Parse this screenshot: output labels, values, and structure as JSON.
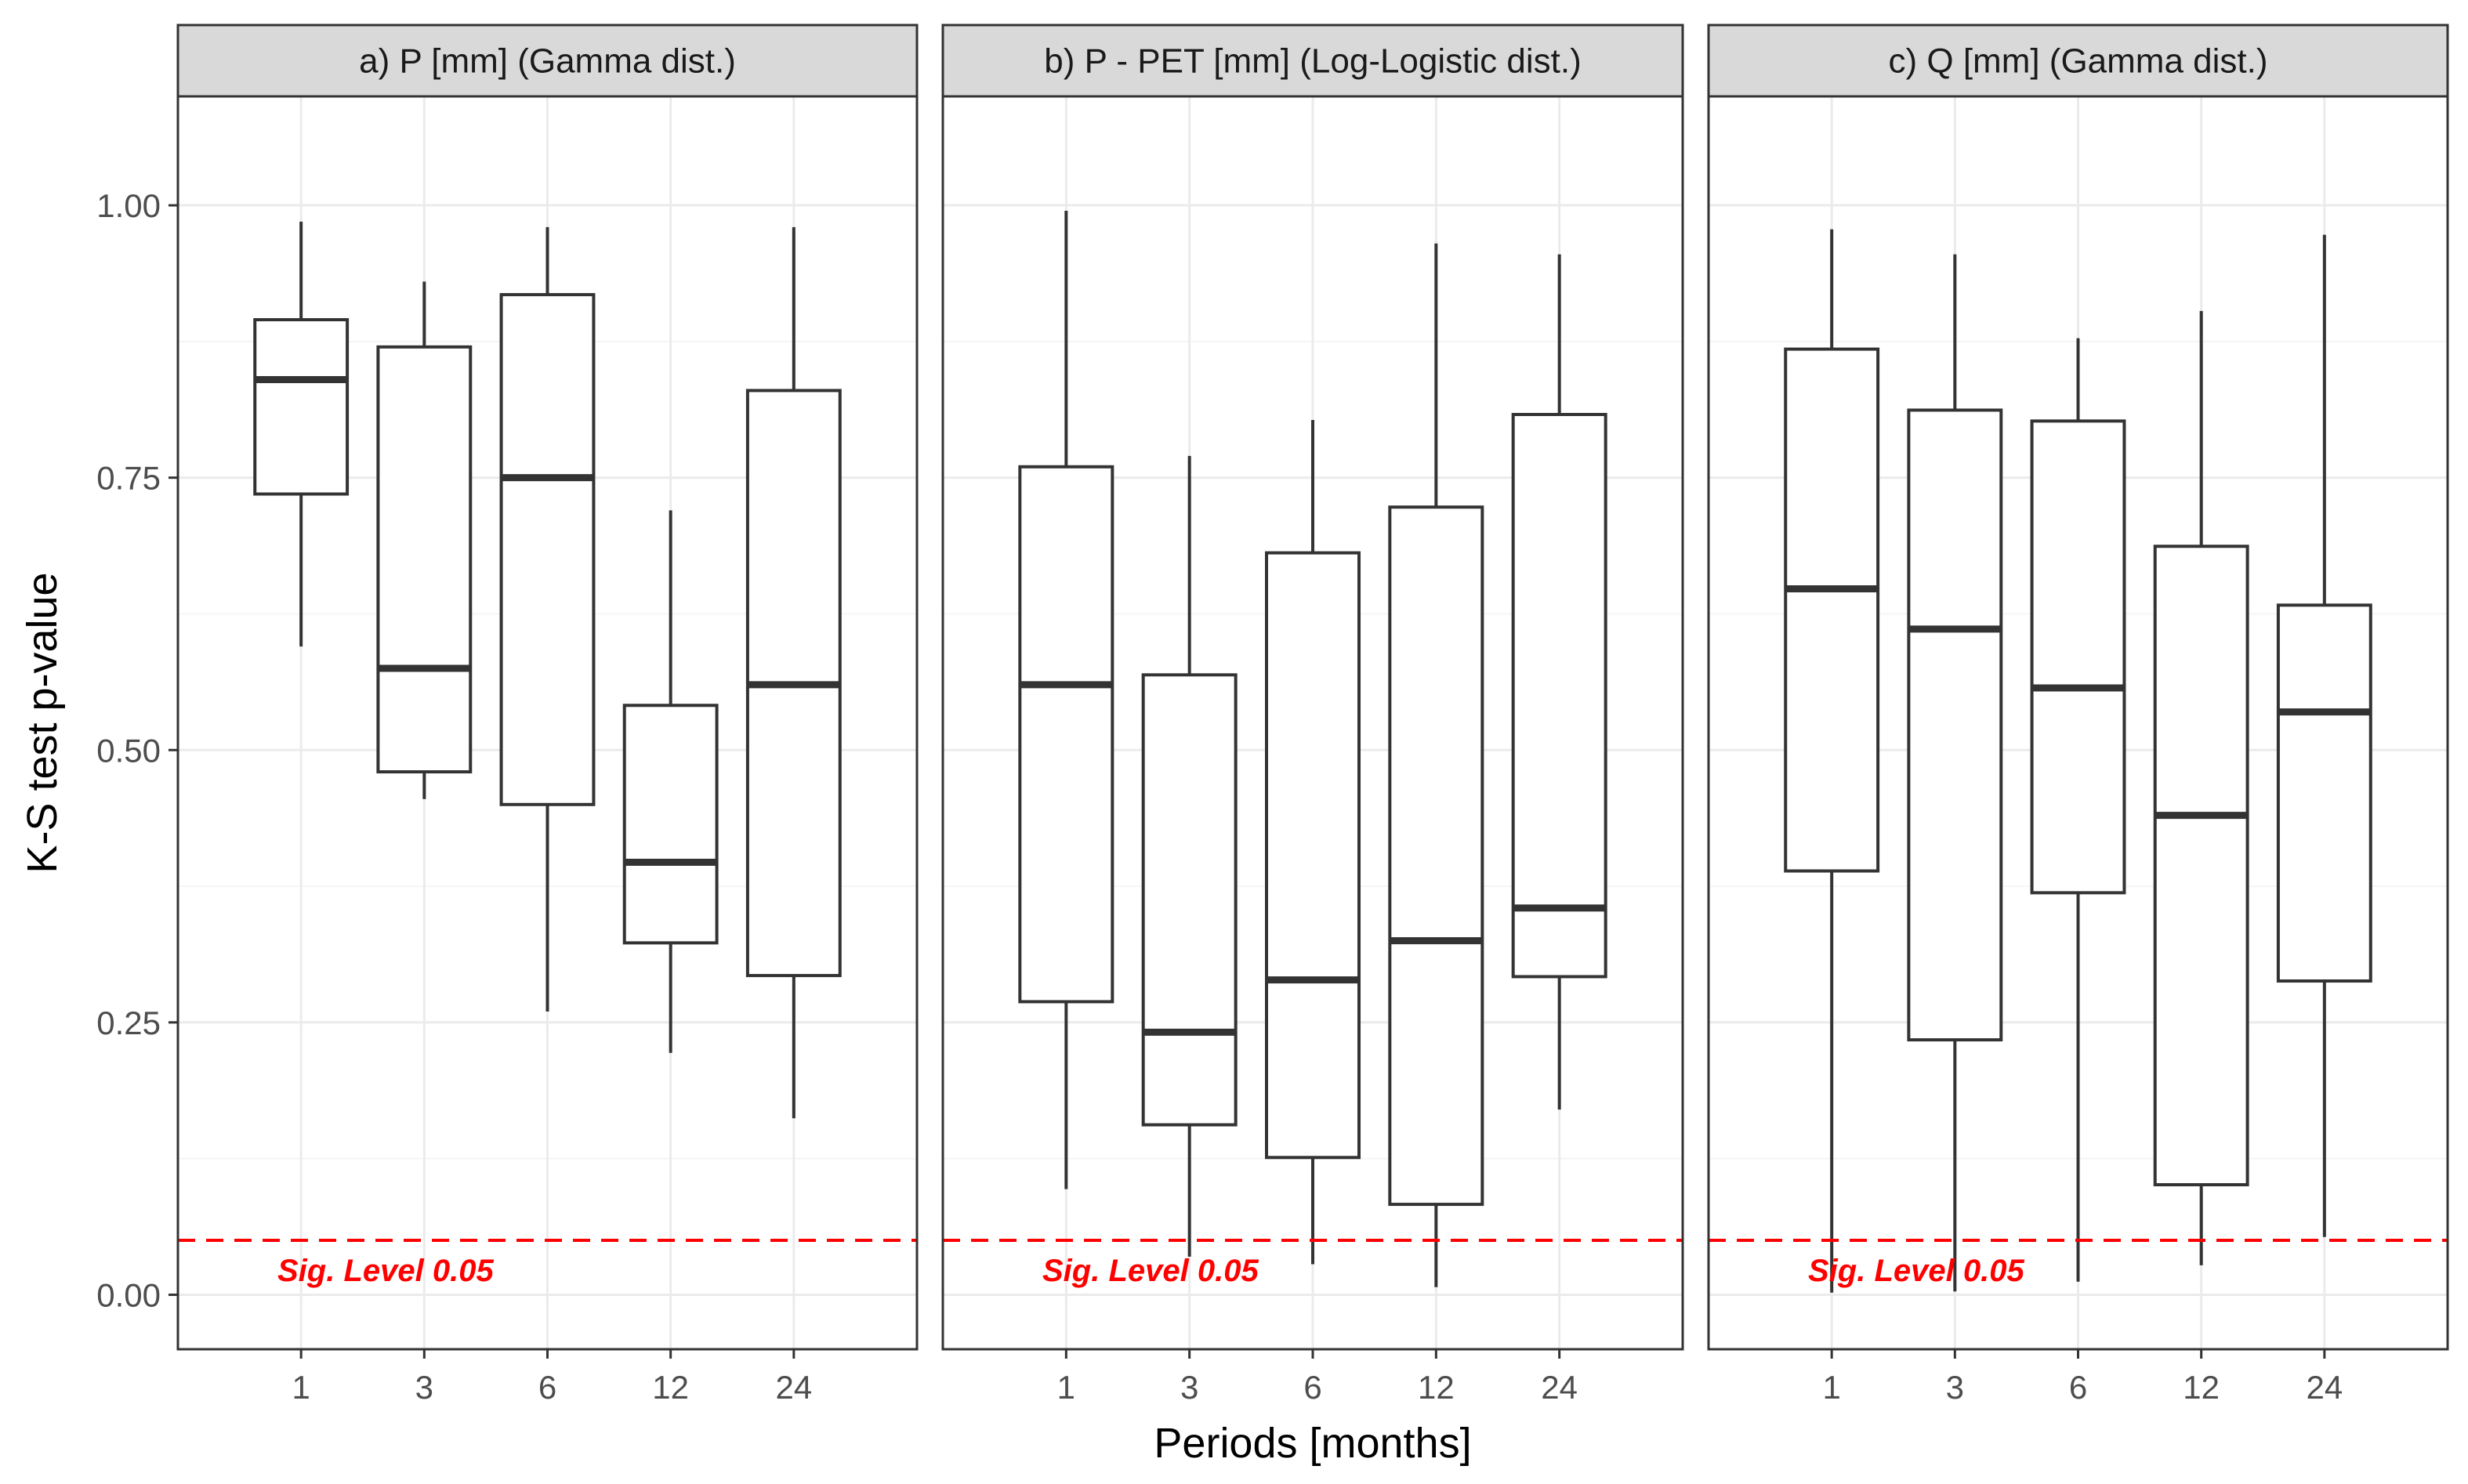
{
  "chart_data": {
    "type": "boxplot",
    "xlabel": "Periods [months]",
    "ylabel": "K-S test p-value",
    "categories": [
      "1",
      "3",
      "6",
      "12",
      "24"
    ],
    "ylim": [
      -0.05,
      1.1
    ],
    "yticks": [
      0.0,
      0.25,
      0.5,
      0.75,
      1.0
    ],
    "ytick_labels": [
      "0.00",
      "0.25",
      "0.50",
      "0.75",
      "1.00"
    ],
    "grid": true,
    "reference_line": {
      "value": 0.05,
      "label": "Sig. Level 0.05",
      "color": "#ff0000",
      "style": "dashed"
    },
    "colors": {
      "box_line": "#333333",
      "strip_fill": "#d9d9d9",
      "panel_border": "#333333",
      "grid_major": "#ebebeb",
      "grid_minor": "#f5f5f5"
    },
    "panels": [
      {
        "title": "a) P [mm] (Gamma dist.)",
        "boxes": [
          {
            "category": "1",
            "min": 0.595,
            "q1": 0.735,
            "median": 0.84,
            "q3": 0.895,
            "max": 0.985
          },
          {
            "category": "3",
            "min": 0.455,
            "q1": 0.48,
            "median": 0.575,
            "q3": 0.87,
            "max": 0.93
          },
          {
            "category": "6",
            "min": 0.26,
            "q1": 0.45,
            "median": 0.75,
            "q3": 0.918,
            "max": 0.98
          },
          {
            "category": "12",
            "min": 0.222,
            "q1": 0.323,
            "median": 0.397,
            "q3": 0.541,
            "max": 0.72
          },
          {
            "category": "24",
            "min": 0.162,
            "q1": 0.293,
            "median": 0.56,
            "q3": 0.83,
            "max": 0.98
          }
        ]
      },
      {
        "title": "b) P - PET [mm] (Log-Logistic dist.)",
        "boxes": [
          {
            "category": "1",
            "min": 0.097,
            "q1": 0.269,
            "median": 0.56,
            "q3": 0.76,
            "max": 0.995
          },
          {
            "category": "3",
            "min": 0.035,
            "q1": 0.156,
            "median": 0.241,
            "q3": 0.569,
            "max": 0.77
          },
          {
            "category": "6",
            "min": 0.028,
            "q1": 0.126,
            "median": 0.289,
            "q3": 0.681,
            "max": 0.803
          },
          {
            "category": "12",
            "min": 0.007,
            "q1": 0.083,
            "median": 0.325,
            "q3": 0.723,
            "max": 0.965
          },
          {
            "category": "24",
            "min": 0.17,
            "q1": 0.292,
            "median": 0.355,
            "q3": 0.808,
            "max": 0.955
          }
        ]
      },
      {
        "title": "c) Q [mm] (Gamma dist.)",
        "boxes": [
          {
            "category": "1",
            "min": 0.002,
            "q1": 0.389,
            "median": 0.648,
            "q3": 0.868,
            "max": 0.978
          },
          {
            "category": "3",
            "min": 0.003,
            "q1": 0.234,
            "median": 0.611,
            "q3": 0.812,
            "max": 0.955
          },
          {
            "category": "6",
            "min": 0.012,
            "q1": 0.369,
            "median": 0.557,
            "q3": 0.802,
            "max": 0.878
          },
          {
            "category": "12",
            "min": 0.027,
            "q1": 0.101,
            "median": 0.44,
            "q3": 0.687,
            "max": 0.903
          },
          {
            "category": "24",
            "min": 0.053,
            "q1": 0.288,
            "median": 0.535,
            "q3": 0.633,
            "max": 0.973
          }
        ]
      }
    ]
  }
}
